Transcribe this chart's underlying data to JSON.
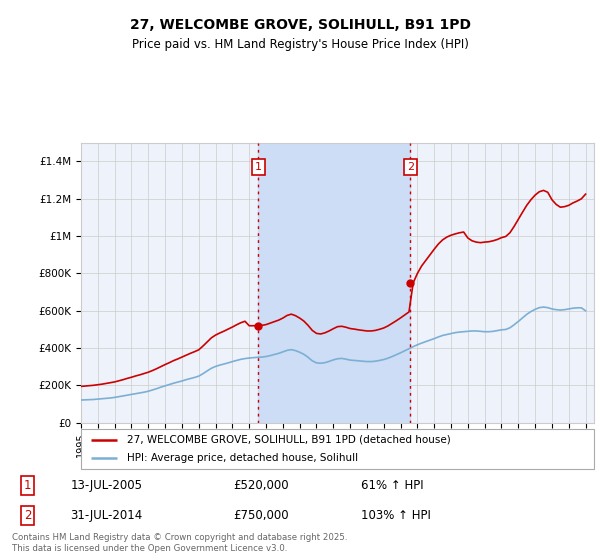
{
  "title": "27, WELCOMBE GROVE, SOLIHULL, B91 1PD",
  "subtitle": "Price paid vs. HM Land Registry's House Price Index (HPI)",
  "ylim": [
    0,
    1500000
  ],
  "yticks": [
    0,
    200000,
    400000,
    600000,
    800000,
    1000000,
    1200000,
    1400000
  ],
  "ytick_labels": [
    "£0",
    "£200K",
    "£400K",
    "£600K",
    "£800K",
    "£1M",
    "£1.2M",
    "£1.4M"
  ],
  "background_color": "#ffffff",
  "plot_bg_color": "#eef2fa",
  "grid_color": "#cccccc",
  "sale1_date": 2005.54,
  "sale1_price": 520000,
  "sale2_date": 2014.58,
  "sale2_price": 750000,
  "legend_line1": "27, WELCOMBE GROVE, SOLIHULL, B91 1PD (detached house)",
  "legend_line2": "HPI: Average price, detached house, Solihull",
  "footer": "Contains HM Land Registry data © Crown copyright and database right 2025.\nThis data is licensed under the Open Government Licence v3.0.",
  "hpi_color": "#7bafd4",
  "price_color": "#cc0000",
  "sale_marker_color": "#cc0000",
  "dashed_color": "#cc0000",
  "shaded_color": "#ccddf5",
  "xmin": 1995,
  "xmax": 2025.5,
  "hpi_data": [
    [
      1995.0,
      122000
    ],
    [
      1995.25,
      123000
    ],
    [
      1995.5,
      124000
    ],
    [
      1995.75,
      125000
    ],
    [
      1996.0,
      127000
    ],
    [
      1996.25,
      129000
    ],
    [
      1996.5,
      131000
    ],
    [
      1996.75,
      133000
    ],
    [
      1997.0,
      136000
    ],
    [
      1997.25,
      140000
    ],
    [
      1997.5,
      144000
    ],
    [
      1997.75,
      148000
    ],
    [
      1998.0,
      152000
    ],
    [
      1998.25,
      156000
    ],
    [
      1998.5,
      160000
    ],
    [
      1998.75,
      164000
    ],
    [
      1999.0,
      169000
    ],
    [
      1999.25,
      176000
    ],
    [
      1999.5,
      183000
    ],
    [
      1999.75,
      191000
    ],
    [
      2000.0,
      198000
    ],
    [
      2000.25,
      205000
    ],
    [
      2000.5,
      212000
    ],
    [
      2000.75,
      218000
    ],
    [
      2001.0,
      224000
    ],
    [
      2001.25,
      231000
    ],
    [
      2001.5,
      237000
    ],
    [
      2001.75,
      243000
    ],
    [
      2002.0,
      250000
    ],
    [
      2002.25,
      263000
    ],
    [
      2002.5,
      278000
    ],
    [
      2002.75,
      292000
    ],
    [
      2003.0,
      302000
    ],
    [
      2003.25,
      309000
    ],
    [
      2003.5,
      315000
    ],
    [
      2003.75,
      321000
    ],
    [
      2004.0,
      328000
    ],
    [
      2004.25,
      334000
    ],
    [
      2004.5,
      340000
    ],
    [
      2004.75,
      344000
    ],
    [
      2005.0,
      347000
    ],
    [
      2005.25,
      349000
    ],
    [
      2005.5,
      351000
    ],
    [
      2005.75,
      352000
    ],
    [
      2006.0,
      355000
    ],
    [
      2006.25,
      360000
    ],
    [
      2006.5,
      366000
    ],
    [
      2006.75,
      372000
    ],
    [
      2007.0,
      380000
    ],
    [
      2007.25,
      388000
    ],
    [
      2007.5,
      392000
    ],
    [
      2007.75,
      387000
    ],
    [
      2008.0,
      378000
    ],
    [
      2008.25,
      367000
    ],
    [
      2008.5,
      351000
    ],
    [
      2008.75,
      332000
    ],
    [
      2009.0,
      321000
    ],
    [
      2009.25,
      319000
    ],
    [
      2009.5,
      322000
    ],
    [
      2009.75,
      329000
    ],
    [
      2010.0,
      337000
    ],
    [
      2010.25,
      343000
    ],
    [
      2010.5,
      345000
    ],
    [
      2010.75,
      341000
    ],
    [
      2011.0,
      336000
    ],
    [
      2011.25,
      334000
    ],
    [
      2011.5,
      332000
    ],
    [
      2011.75,
      330000
    ],
    [
      2012.0,
      328000
    ],
    [
      2012.25,
      328000
    ],
    [
      2012.5,
      330000
    ],
    [
      2012.75,
      334000
    ],
    [
      2013.0,
      339000
    ],
    [
      2013.25,
      346000
    ],
    [
      2013.5,
      355000
    ],
    [
      2013.75,
      365000
    ],
    [
      2014.0,
      375000
    ],
    [
      2014.25,
      386000
    ],
    [
      2014.5,
      397000
    ],
    [
      2014.75,
      408000
    ],
    [
      2015.0,
      418000
    ],
    [
      2015.25,
      427000
    ],
    [
      2015.5,
      435000
    ],
    [
      2015.75,
      443000
    ],
    [
      2016.0,
      451000
    ],
    [
      2016.25,
      460000
    ],
    [
      2016.5,
      468000
    ],
    [
      2016.75,
      473000
    ],
    [
      2017.0,
      478000
    ],
    [
      2017.25,
      483000
    ],
    [
      2017.5,
      486000
    ],
    [
      2017.75,
      488000
    ],
    [
      2018.0,
      490000
    ],
    [
      2018.25,
      492000
    ],
    [
      2018.5,
      492000
    ],
    [
      2018.75,
      490000
    ],
    [
      2019.0,
      488000
    ],
    [
      2019.25,
      488000
    ],
    [
      2019.5,
      490000
    ],
    [
      2019.75,
      494000
    ],
    [
      2020.0,
      498000
    ],
    [
      2020.25,
      500000
    ],
    [
      2020.5,
      509000
    ],
    [
      2020.75,
      525000
    ],
    [
      2021.0,
      543000
    ],
    [
      2021.25,
      562000
    ],
    [
      2021.5,
      581000
    ],
    [
      2021.75,
      596000
    ],
    [
      2022.0,
      608000
    ],
    [
      2022.25,
      617000
    ],
    [
      2022.5,
      620000
    ],
    [
      2022.75,
      617000
    ],
    [
      2023.0,
      610000
    ],
    [
      2023.25,
      606000
    ],
    [
      2023.5,
      604000
    ],
    [
      2023.75,
      606000
    ],
    [
      2024.0,
      610000
    ],
    [
      2024.25,
      614000
    ],
    [
      2024.5,
      616000
    ],
    [
      2024.75,
      616000
    ],
    [
      2025.0,
      600000
    ]
  ],
  "price_data": [
    [
      1995.0,
      195000
    ],
    [
      1995.25,
      197000
    ],
    [
      1995.5,
      199000
    ],
    [
      1995.75,
      201000
    ],
    [
      1996.0,
      204000
    ],
    [
      1996.25,
      207000
    ],
    [
      1996.5,
      211000
    ],
    [
      1996.75,
      215000
    ],
    [
      1997.0,
      219000
    ],
    [
      1997.25,
      225000
    ],
    [
      1997.5,
      231000
    ],
    [
      1997.75,
      238000
    ],
    [
      1998.0,
      244000
    ],
    [
      1998.25,
      251000
    ],
    [
      1998.5,
      257000
    ],
    [
      1998.75,
      264000
    ],
    [
      1999.0,
      271000
    ],
    [
      1999.25,
      280000
    ],
    [
      1999.5,
      290000
    ],
    [
      1999.75,
      301000
    ],
    [
      2000.0,
      312000
    ],
    [
      2000.25,
      322000
    ],
    [
      2000.5,
      333000
    ],
    [
      2000.75,
      342000
    ],
    [
      2001.0,
      352000
    ],
    [
      2001.25,
      362000
    ],
    [
      2001.5,
      372000
    ],
    [
      2001.75,
      381000
    ],
    [
      2002.0,
      391000
    ],
    [
      2002.25,
      411000
    ],
    [
      2002.5,
      433000
    ],
    [
      2002.75,
      455000
    ],
    [
      2003.0,
      470000
    ],
    [
      2003.25,
      481000
    ],
    [
      2003.5,
      491000
    ],
    [
      2003.75,
      502000
    ],
    [
      2004.0,
      513000
    ],
    [
      2004.25,
      525000
    ],
    [
      2004.5,
      536000
    ],
    [
      2004.75,
      544000
    ],
    [
      2005.0,
      520000
    ],
    [
      2005.25,
      520000
    ],
    [
      2005.5,
      521000
    ],
    [
      2005.75,
      522000
    ],
    [
      2006.0,
      526000
    ],
    [
      2006.25,
      534000
    ],
    [
      2006.5,
      542000
    ],
    [
      2006.75,
      550000
    ],
    [
      2007.0,
      561000
    ],
    [
      2007.25,
      575000
    ],
    [
      2007.5,
      582000
    ],
    [
      2007.75,
      574000
    ],
    [
      2008.0,
      561000
    ],
    [
      2008.25,
      545000
    ],
    [
      2008.5,
      522000
    ],
    [
      2008.75,
      495000
    ],
    [
      2009.0,
      479000
    ],
    [
      2009.25,
      476000
    ],
    [
      2009.5,
      482000
    ],
    [
      2009.75,
      492000
    ],
    [
      2010.0,
      504000
    ],
    [
      2010.25,
      515000
    ],
    [
      2010.5,
      517000
    ],
    [
      2010.75,
      512000
    ],
    [
      2011.0,
      505000
    ],
    [
      2011.25,
      502000
    ],
    [
      2011.5,
      498000
    ],
    [
      2011.75,
      495000
    ],
    [
      2012.0,
      492000
    ],
    [
      2012.25,
      492000
    ],
    [
      2012.5,
      495000
    ],
    [
      2012.75,
      501000
    ],
    [
      2013.0,
      508000
    ],
    [
      2013.25,
      519000
    ],
    [
      2013.5,
      533000
    ],
    [
      2013.75,
      547000
    ],
    [
      2014.0,
      562000
    ],
    [
      2014.25,
      578000
    ],
    [
      2014.5,
      594000
    ],
    [
      2014.75,
      750000
    ],
    [
      2015.0,
      800000
    ],
    [
      2015.25,
      840000
    ],
    [
      2015.5,
      870000
    ],
    [
      2015.75,
      900000
    ],
    [
      2016.0,
      930000
    ],
    [
      2016.25,
      958000
    ],
    [
      2016.5,
      980000
    ],
    [
      2016.75,
      995000
    ],
    [
      2017.0,
      1005000
    ],
    [
      2017.25,
      1012000
    ],
    [
      2017.5,
      1018000
    ],
    [
      2017.75,
      1022000
    ],
    [
      2018.0,
      990000
    ],
    [
      2018.25,
      975000
    ],
    [
      2018.5,
      968000
    ],
    [
      2018.75,
      965000
    ],
    [
      2019.0,
      968000
    ],
    [
      2019.25,
      970000
    ],
    [
      2019.5,
      975000
    ],
    [
      2019.75,
      982000
    ],
    [
      2020.0,
      992000
    ],
    [
      2020.25,
      998000
    ],
    [
      2020.5,
      1018000
    ],
    [
      2020.75,
      1052000
    ],
    [
      2021.0,
      1090000
    ],
    [
      2021.25,
      1128000
    ],
    [
      2021.5,
      1165000
    ],
    [
      2021.75,
      1195000
    ],
    [
      2022.0,
      1220000
    ],
    [
      2022.25,
      1238000
    ],
    [
      2022.5,
      1245000
    ],
    [
      2022.75,
      1235000
    ],
    [
      2023.0,
      1195000
    ],
    [
      2023.25,
      1170000
    ],
    [
      2023.5,
      1155000
    ],
    [
      2023.75,
      1158000
    ],
    [
      2024.0,
      1165000
    ],
    [
      2024.25,
      1178000
    ],
    [
      2024.5,
      1188000
    ],
    [
      2024.75,
      1200000
    ],
    [
      2025.0,
      1225000
    ]
  ]
}
